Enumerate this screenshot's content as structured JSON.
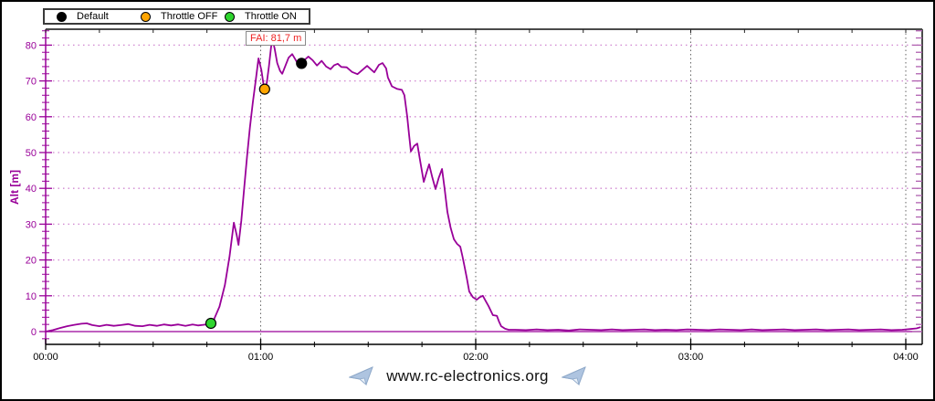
{
  "window": {
    "background": "#ffffff",
    "border_color": "#000000"
  },
  "legend": {
    "items": [
      {
        "label": "Default",
        "color": "#000000"
      },
      {
        "label": "Throttle OFF",
        "color": "#ffa500"
      },
      {
        "label": "Throttle ON",
        "color": "#2ed52e"
      }
    ]
  },
  "annotation": {
    "text": "FAI: 81,7 m",
    "color": "#ee2222"
  },
  "footer": {
    "url": "www.rc-electronics.org"
  },
  "chart_data": {
    "type": "line",
    "title": "",
    "xlabel": "",
    "ylabel": "Alt [m]",
    "x_unit": "mm:ss",
    "xlim_seconds": [
      0,
      244.6
    ],
    "ylim": [
      -3.6,
      84.4
    ],
    "grid": true,
    "x_ticks": [
      {
        "t": 0,
        "label": "00:00"
      },
      {
        "t": 60,
        "label": "01:00"
      },
      {
        "t": 120,
        "label": "02:00"
      },
      {
        "t": 180,
        "label": "03:00"
      },
      {
        "t": 240,
        "label": "04:00"
      }
    ],
    "x_minor_step_s": 15,
    "y_ticks": [
      0,
      10,
      20,
      30,
      40,
      50,
      60,
      70,
      80
    ],
    "y_minor_step": 2,
    "colors": {
      "curve": "#990099",
      "y_axis": "#990099",
      "x_axis": "#000000",
      "frame": "#4a4a4a",
      "h_grid": "#d086d0",
      "v_grid": "#666666",
      "zero_line": "#990099",
      "right_ticks": "#b060b0",
      "top_ticks": "#222222"
    },
    "markers": [
      {
        "name": "throttle-on",
        "label": "Throttle ON",
        "color": "#2ed52e",
        "t": 46.1,
        "alt": 2.3
      },
      {
        "name": "throttle-off",
        "label": "Throttle OFF",
        "color": "#ffa500",
        "t": 61.1,
        "alt": 67.7
      },
      {
        "name": "default",
        "label": "Default",
        "color": "#000000",
        "t": 71.4,
        "alt": 74.9
      }
    ],
    "fai_peak": {
      "t": 63.3,
      "alt": 81.7
    },
    "series": [
      {
        "name": "Altitude",
        "color": "#990099",
        "points": [
          [
            0,
            0
          ],
          [
            2,
            0.4
          ],
          [
            4,
            1.0
          ],
          [
            6,
            1.5
          ],
          [
            8,
            1.9
          ],
          [
            10,
            2.2
          ],
          [
            11.5,
            2.3
          ],
          [
            13,
            1.8
          ],
          [
            15,
            1.5
          ],
          [
            17,
            1.9
          ],
          [
            19,
            1.6
          ],
          [
            21,
            1.8
          ],
          [
            23,
            2.1
          ],
          [
            25,
            1.6
          ],
          [
            27,
            1.5
          ],
          [
            29,
            1.9
          ],
          [
            31,
            1.6
          ],
          [
            33,
            2.0
          ],
          [
            35,
            1.7
          ],
          [
            37,
            2.0
          ],
          [
            39,
            1.6
          ],
          [
            41,
            2.0
          ],
          [
            42.5,
            1.7
          ],
          [
            44,
            1.9
          ],
          [
            45.5,
            2.1
          ],
          [
            46.1,
            2.3
          ],
          [
            47,
            3.5
          ],
          [
            48.5,
            7
          ],
          [
            50,
            13
          ],
          [
            51.3,
            21
          ],
          [
            52.5,
            30.4
          ],
          [
            53.3,
            27
          ],
          [
            53.8,
            24.2
          ],
          [
            54.6,
            31
          ],
          [
            55.4,
            40
          ],
          [
            56.2,
            49
          ],
          [
            57,
            57
          ],
          [
            57.8,
            64
          ],
          [
            58.6,
            70
          ],
          [
            59.4,
            76.3
          ],
          [
            60.2,
            73
          ],
          [
            60.8,
            69
          ],
          [
            61.1,
            67.7
          ],
          [
            61.7,
            69.5
          ],
          [
            62.3,
            74
          ],
          [
            62.9,
            79.5
          ],
          [
            63.3,
            81.7
          ],
          [
            63.9,
            79
          ],
          [
            64.6,
            75
          ],
          [
            65.4,
            72.8
          ],
          [
            66,
            72
          ],
          [
            66.8,
            74
          ],
          [
            67.8,
            76.5
          ],
          [
            68.8,
            77.5
          ],
          [
            69.8,
            75.8
          ],
          [
            70.6,
            74.3
          ],
          [
            71.4,
            74.9
          ],
          [
            72.4,
            76
          ],
          [
            73.3,
            76.8
          ],
          [
            74.5,
            75.8
          ],
          [
            75.7,
            74.3
          ],
          [
            77,
            75.6
          ],
          [
            78.3,
            74
          ],
          [
            79.5,
            73.3
          ],
          [
            80.5,
            74.4
          ],
          [
            81.5,
            74.8
          ],
          [
            82.5,
            73.9
          ],
          [
            84,
            73.8
          ],
          [
            85.5,
            72.5
          ],
          [
            87,
            71.9
          ],
          [
            88.3,
            73
          ],
          [
            89.7,
            74.2
          ],
          [
            91,
            73
          ],
          [
            91.7,
            72.4
          ],
          [
            93,
            74.5
          ],
          [
            94,
            75
          ],
          [
            95,
            73.5
          ],
          [
            95.5,
            71
          ],
          [
            96.6,
            68.5
          ],
          [
            98,
            67.8
          ],
          [
            99.4,
            67.5
          ],
          [
            100.1,
            66
          ],
          [
            100.9,
            60
          ],
          [
            101.4,
            55
          ],
          [
            101.9,
            50.3
          ],
          [
            102.8,
            51.8
          ],
          [
            103.7,
            52.5
          ],
          [
            104.6,
            47
          ],
          [
            105.5,
            41.8
          ],
          [
            106.3,
            44.5
          ],
          [
            107,
            46.7
          ],
          [
            107.9,
            43
          ],
          [
            108.8,
            39.8
          ],
          [
            109.7,
            43
          ],
          [
            110.6,
            45.4
          ],
          [
            111.3,
            40
          ],
          [
            112.1,
            33.4
          ],
          [
            113,
            29
          ],
          [
            113.9,
            25.8
          ],
          [
            114.8,
            24.5
          ],
          [
            115.7,
            23.7
          ],
          [
            116.3,
            21
          ],
          [
            116.9,
            18.1
          ],
          [
            117.5,
            15
          ],
          [
            118.2,
            11.2
          ],
          [
            119.2,
            9.6
          ],
          [
            120.3,
            8.9
          ],
          [
            121.1,
            9.6
          ],
          [
            122,
            10
          ],
          [
            122.8,
            8.5
          ],
          [
            123.6,
            7.1
          ],
          [
            124.8,
            4.6
          ],
          [
            125.9,
            4.4
          ],
          [
            126.5,
            2.8
          ],
          [
            127.1,
            1.5
          ],
          [
            128.2,
            0.8
          ],
          [
            129.2,
            0.5
          ],
          [
            131,
            0.5
          ],
          [
            134,
            0.4
          ],
          [
            137,
            0.6
          ],
          [
            140,
            0.4
          ],
          [
            143,
            0.5
          ],
          [
            146,
            0.3
          ],
          [
            149,
            0.6
          ],
          [
            152,
            0.5
          ],
          [
            155,
            0.4
          ],
          [
            158,
            0.6
          ],
          [
            161,
            0.4
          ],
          [
            164,
            0.5
          ],
          [
            167,
            0.6
          ],
          [
            170,
            0.4
          ],
          [
            173,
            0.5
          ],
          [
            176,
            0.4
          ],
          [
            179,
            0.6
          ],
          [
            182,
            0.5
          ],
          [
            185,
            0.4
          ],
          [
            188,
            0.6
          ],
          [
            191,
            0.5
          ],
          [
            194,
            0.4
          ],
          [
            197,
            0.6
          ],
          [
            200,
            0.4
          ],
          [
            203,
            0.5
          ],
          [
            206,
            0.6
          ],
          [
            209,
            0.4
          ],
          [
            212,
            0.5
          ],
          [
            215,
            0.6
          ],
          [
            218,
            0.4
          ],
          [
            221,
            0.5
          ],
          [
            224,
            0.6
          ],
          [
            227,
            0.4
          ],
          [
            230,
            0.5
          ],
          [
            233,
            0.6
          ],
          [
            236,
            0.4
          ],
          [
            239,
            0.5
          ],
          [
            241,
            0.7
          ],
          [
            243,
            0.9
          ],
          [
            244,
            1.2
          ]
        ]
      }
    ]
  }
}
